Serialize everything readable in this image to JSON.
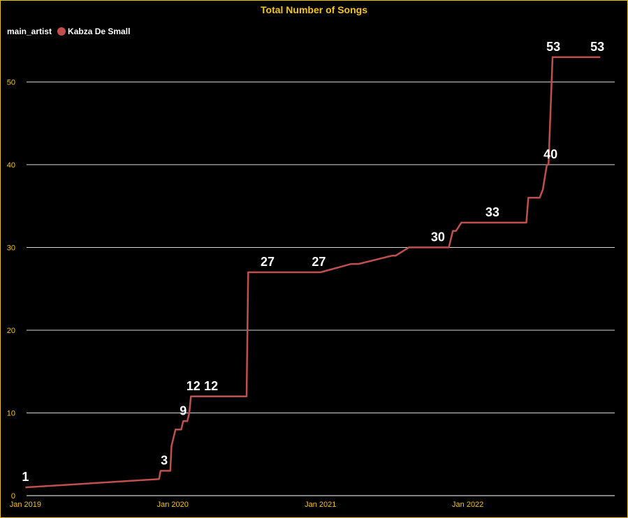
{
  "chart_data": {
    "type": "line",
    "title": "Total Number of Songs",
    "legend": {
      "title": "main_artist",
      "placement": "top-left"
    },
    "series": [
      {
        "name": "Kabza De Small",
        "color": "#c0504d",
        "points": [
          [
            "2019-01-01",
            1
          ],
          [
            "2019-11-28",
            2
          ],
          [
            "2019-12-02",
            3
          ],
          [
            "2019-12-26",
            3
          ],
          [
            "2019-12-29",
            6
          ],
          [
            "2020-01-03",
            7
          ],
          [
            "2020-01-08",
            8
          ],
          [
            "2020-01-22",
            8
          ],
          [
            "2020-01-27",
            9
          ],
          [
            "2020-02-06",
            9
          ],
          [
            "2020-02-11",
            10
          ],
          [
            "2020-02-15",
            12
          ],
          [
            "2020-03-21",
            12
          ],
          [
            "2020-07-02",
            12
          ],
          [
            "2020-07-06",
            27
          ],
          [
            "2020-10-02",
            27
          ],
          [
            "2021-01-01",
            27
          ],
          [
            "2021-03-18",
            28
          ],
          [
            "2021-04-05",
            28
          ],
          [
            "2021-06-27",
            29
          ],
          [
            "2021-07-06",
            29
          ],
          [
            "2021-08-08",
            30
          ],
          [
            "2021-10-05",
            30
          ],
          [
            "2021-11-15",
            30
          ],
          [
            "2021-11-25",
            32
          ],
          [
            "2021-12-03",
            32
          ],
          [
            "2021-12-16",
            33
          ],
          [
            "2022-01-25",
            33
          ],
          [
            "2022-05-26",
            33
          ],
          [
            "2022-05-31",
            36
          ],
          [
            "2022-06-28",
            36
          ],
          [
            "2022-07-06",
            37
          ],
          [
            "2022-07-16",
            40
          ],
          [
            "2022-07-20",
            40
          ],
          [
            "2022-07-30",
            53
          ],
          [
            "2022-11-25",
            53
          ]
        ]
      }
    ],
    "data_labels": [
      {
        "x": "2019-01-01",
        "value": "1"
      },
      {
        "x": "2019-12-11",
        "value": "3"
      },
      {
        "x": "2020-01-27",
        "value": "9"
      },
      {
        "x": "2020-02-21",
        "value": "12"
      },
      {
        "x": "2020-04-05",
        "value": "12"
      },
      {
        "x": "2020-08-23",
        "value": "27"
      },
      {
        "x": "2020-12-28",
        "value": "27"
      },
      {
        "x": "2021-10-19",
        "value": "30"
      },
      {
        "x": "2022-03-03",
        "value": "33"
      },
      {
        "x": "2022-07-25",
        "value": "40"
      },
      {
        "x": "2022-08-01",
        "value": "53"
      },
      {
        "x": "2022-11-18",
        "value": "53"
      }
    ],
    "x_ticks": [
      {
        "date": "2019-01-01",
        "label": "Jan 2019"
      },
      {
        "date": "2020-01-01",
        "label": "Jan 2020"
      },
      {
        "date": "2021-01-01",
        "label": "Jan 2021"
      },
      {
        "date": "2022-01-01",
        "label": "Jan 2022"
      }
    ],
    "y_ticks": [
      0,
      10,
      20,
      30,
      40,
      50
    ],
    "ylim": [
      0,
      54
    ],
    "xlim": [
      "2018-12-21",
      "2022-12-31"
    ],
    "grid": "horizontal",
    "colors": {
      "title": "#f5c518",
      "ticks": "#f5c518",
      "grid": "#ffffff",
      "background": "#000000",
      "border": "#e8c200"
    }
  }
}
